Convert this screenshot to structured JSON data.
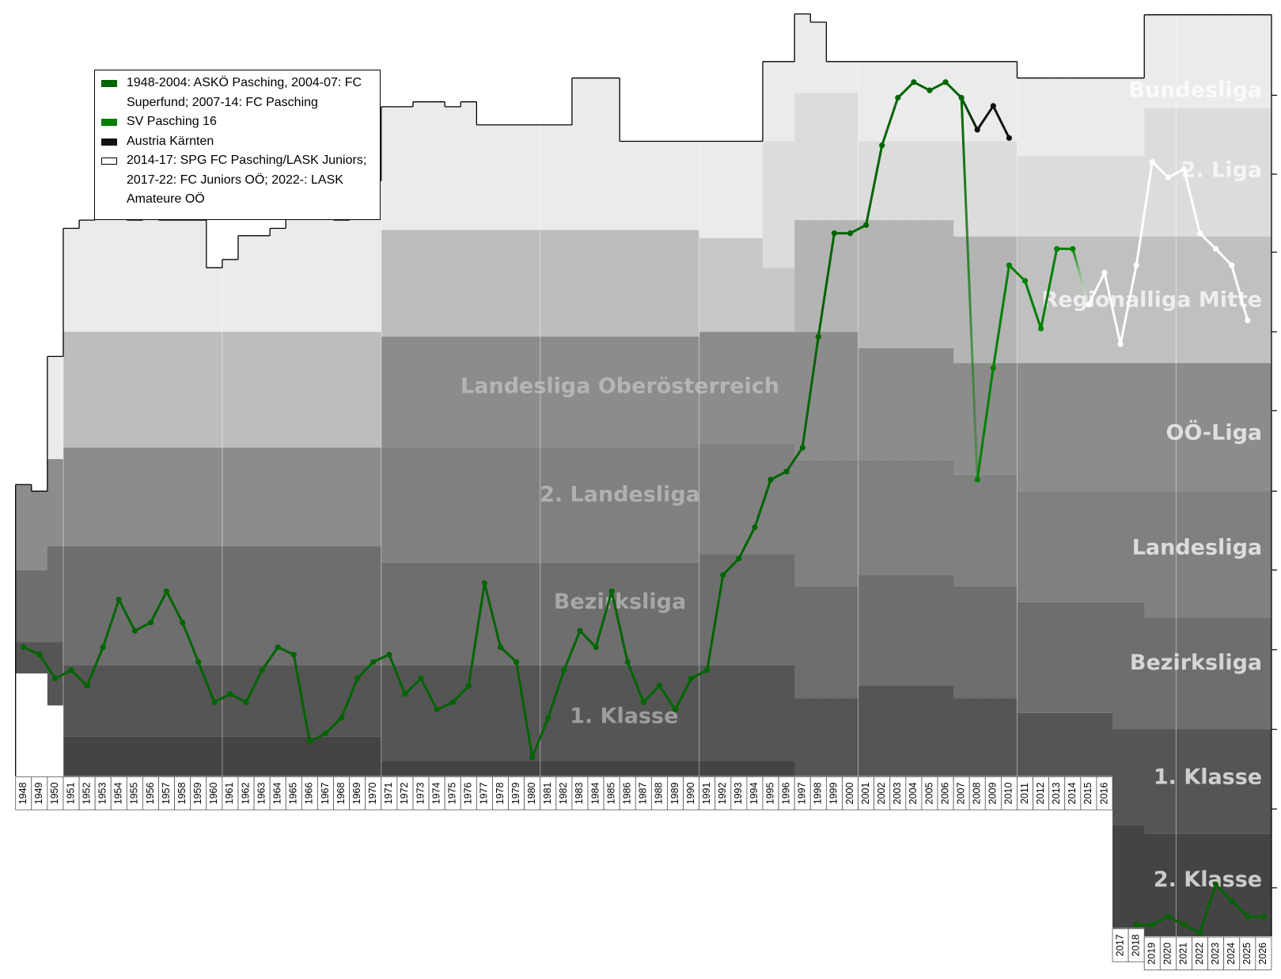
{
  "chart_data": {
    "type": "line",
    "x": [
      1948,
      1949,
      1950,
      1951,
      1952,
      1953,
      1954,
      1955,
      1956,
      1957,
      1958,
      1959,
      1960,
      1961,
      1962,
      1963,
      1964,
      1965,
      1966,
      1967,
      1968,
      1969,
      1970,
      1971,
      1972,
      1973,
      1974,
      1975,
      1976,
      1977,
      1978,
      1979,
      1980,
      1981,
      1982,
      1983,
      1984,
      1985,
      1986,
      1987,
      1988,
      1989,
      1990,
      1991,
      1992,
      1993,
      1994,
      1995,
      1996,
      1997,
      1998,
      1999,
      2000,
      2001,
      2002,
      2003,
      2004,
      2005,
      2006,
      2007,
      2008,
      2009,
      2010,
      2011,
      2012,
      2013,
      2014,
      2015,
      2016,
      2017,
      2018,
      2019,
      2020,
      2021,
      2022,
      2023,
      2024,
      2025,
      2026
    ],
    "xlim": [
      1946.52,
      2027.1
    ],
    "ylim": [
      0,
      1192
    ],
    "yticks": [
      116,
      212,
      307,
      404,
      500,
      598,
      694,
      791,
      888,
      985,
      1081
    ],
    "series": [
      {
        "name": "1948-2004: ASKÖ Pasching, 2004-07: FC Superfund; 2007-14: FC Pasching",
        "color": "#006400",
        "x": [
          1948,
          1949,
          1950,
          1951,
          1952,
          1953,
          1954,
          1955,
          1956,
          1957,
          1958,
          1959,
          1960,
          1961,
          1962,
          1963,
          1964,
          1965,
          1966,
          1967,
          1968,
          1969,
          1970,
          1971,
          1972,
          1973,
          1974,
          1975,
          1976,
          1977,
          1978,
          1979,
          1980,
          1981,
          1982,
          1983,
          1984,
          1985,
          1986,
          1987,
          1988,
          1989,
          1990,
          1991,
          1992,
          1993,
          1994,
          1995,
          1996,
          1997,
          1998,
          1999,
          2000,
          2001,
          2002,
          2003,
          2004,
          2005,
          2006,
          2007,
          2017,
          2018,
          2019,
          2020,
          2021,
          2022,
          2023,
          2024,
          2025,
          2026
        ],
        "values": [
          788,
          797,
          826,
          816,
          835,
          788,
          730,
          768,
          758,
          720,
          758,
          806,
          855,
          845,
          855,
          816,
          788,
          797,
          903,
          893,
          874,
          826,
          806,
          797,
          845,
          826,
          864,
          855,
          835,
          710,
          788,
          806,
          922,
          874,
          816,
          768,
          788,
          720,
          806,
          855,
          835,
          864,
          826,
          816,
          700,
          680,
          642,
          584,
          574,
          545,
          410,
          284,
          284,
          274,
          177,
          119,
          100,
          110,
          100,
          119,
          null,
          1126,
          1126,
          1116,
          1126,
          1136,
          1077,
          1097,
          1116,
          1116
        ]
      },
      {
        "name": "SV Pasching 16",
        "color": "#008000",
        "x": [
          2008,
          2009,
          2010,
          2011,
          2012,
          2013,
          2014
        ],
        "values": [
          584,
          448,
          323,
          342,
          400,
          303,
          303
        ]
      },
      {
        "name": "Austria Kärnten",
        "color": "#111111",
        "x": [
          2008,
          2009,
          2010
        ],
        "values": [
          158,
          129,
          168
        ]
      },
      {
        "name": "2014-17: SPG FC Pasching/LASK Juniors; 2017-22: FC Juniors OÖ; 2022-: LASK Amateure OÖ",
        "color": "#ffffff",
        "x": [
          2015,
          2016,
          2017,
          2018,
          2019,
          2020,
          2021,
          2022,
          2023,
          2024,
          2025
        ],
        "values": [
          371,
          332,
          419,
          323,
          197,
          216,
          206,
          284,
          303,
          323,
          390
        ]
      }
    ],
    "columns": [
      {
        "years": [
          1948,
          1949
        ],
        "tops": [
          590,
          598
        ],
        "segments": [
          [
            "#8c8c8c",
            694
          ],
          [
            "#6e6e6e",
            782
          ],
          [
            "#555555",
            820
          ],
          [
            "#ffffff",
            945
          ]
        ]
      },
      {
        "years": [
          1950,
          1950
        ],
        "tops": [
          434
        ],
        "segments": [
          [
            "#ebebeb",
            559
          ],
          [
            "#8c8c8c",
            665
          ],
          [
            "#6e6e6e",
            782
          ],
          [
            "#555555",
            859
          ],
          [
            "#ffffff",
            945
          ]
        ]
      },
      {
        "years": [
          1951,
          1970
        ],
        "tops": [
          278,
          268,
          250,
          258,
          268,
          258,
          268,
          268,
          268,
          326,
          316,
          287,
          287,
          278,
          258,
          258,
          258,
          268,
          258,
          220
        ],
        "segments": [
          [
            "#ebebeb",
            404
          ],
          [
            "#bdbdbd",
            545
          ],
          [
            "#8c8c8c",
            665
          ],
          [
            "#6e6e6e",
            810
          ],
          [
            "#555555",
            897
          ],
          [
            "#444444",
            945
          ]
        ]
      },
      {
        "years": [
          1971,
          1990
        ],
        "tops": [
          130,
          130,
          124,
          124,
          130,
          124,
          152,
          152,
          152,
          152,
          152,
          152,
          95,
          95,
          95,
          172,
          172,
          172,
          172,
          172
        ],
        "segments": [
          [
            "#ebebeb",
            280
          ],
          [
            "#bdbdbd",
            410
          ],
          [
            "#8c8c8c",
            545
          ],
          [
            "#808080",
            685
          ],
          [
            "#6e6e6e",
            810
          ],
          [
            "#555555",
            927
          ],
          [
            "#444444",
            945
          ]
        ]
      },
      {
        "years": [
          1991,
          1994
        ],
        "tops": [
          172,
          172,
          172,
          172
        ],
        "segments": [
          [
            "#ebebeb",
            290
          ],
          [
            "#c8c8c8",
            404
          ],
          [
            "#8c8c8c",
            540
          ],
          [
            "#808080",
            675
          ],
          [
            "#6e6e6e",
            810
          ],
          [
            "#555555",
            927
          ],
          [
            "#444444",
            945
          ]
        ]
      },
      {
        "years": [
          1995,
          1996
        ],
        "tops": [
          75,
          75
        ],
        "segments": [
          [
            "#ebebeb",
            172
          ],
          [
            "#dcdcdc",
            326
          ],
          [
            "#c8c8c8",
            404
          ],
          [
            "#8c8c8c",
            540
          ],
          [
            "#808080",
            675
          ],
          [
            "#6e6e6e",
            810
          ],
          [
            "#555555",
            927
          ],
          [
            "#444444",
            945
          ]
        ]
      },
      {
        "years": [
          1997,
          2000
        ],
        "tops": [
          17,
          27,
          75,
          75
        ],
        "segments": [
          [
            "#ebebeb",
            113
          ],
          [
            "#dcdcdc",
            268
          ],
          [
            "#b4b4b4",
            404
          ],
          [
            "#8c8c8c",
            560
          ],
          [
            "#808080",
            714
          ],
          [
            "#6e6e6e",
            850
          ],
          [
            "#555555",
            945
          ]
        ]
      },
      {
        "years": [
          2001,
          2006
        ],
        "tops": [
          75,
          75,
          75,
          75,
          75,
          75
        ],
        "segments": [
          [
            "#ebebeb",
            172
          ],
          [
            "#dcdcdc",
            268
          ],
          [
            "#b4b4b4",
            424
          ],
          [
            "#8c8c8c",
            560
          ],
          [
            "#808080",
            700
          ],
          [
            "#6e6e6e",
            835
          ],
          [
            "#555555",
            945
          ]
        ]
      },
      {
        "years": [
          2007,
          2010
        ],
        "tops": [
          75,
          75,
          75,
          75
        ],
        "segments": [
          [
            "#ebebeb",
            172
          ],
          [
            "#dcdcdc",
            288
          ],
          [
            "#b4b4b4",
            442
          ],
          [
            "#8c8c8c",
            578
          ],
          [
            "#808080",
            714
          ],
          [
            "#6e6e6e",
            850
          ],
          [
            "#555555",
            945
          ]
        ]
      },
      {
        "years": [
          2011,
          2016
        ],
        "tops": [
          95,
          95,
          95,
          95,
          95,
          95
        ],
        "segments": [
          [
            "#ebebeb",
            190
          ],
          [
            "#dcdcdc",
            288
          ],
          [
            "#c0c0c0",
            442
          ],
          [
            "#8c8c8c",
            598
          ],
          [
            "#808080",
            733
          ],
          [
            "#6e6e6e",
            868
          ],
          [
            "#555555",
            945
          ]
        ]
      },
      {
        "years": [
          2017,
          2018
        ],
        "tops": [
          95,
          95
        ],
        "segments": [
          [
            "#ebebeb",
            190
          ],
          [
            "#dcdcdc",
            288
          ],
          [
            "#c0c0c0",
            442
          ],
          [
            "#8c8c8c",
            598
          ],
          [
            "#808080",
            733
          ],
          [
            "#6e6e6e",
            888
          ],
          [
            "#555555",
            1005
          ],
          [
            "#444444",
            1130
          ]
        ]
      },
      {
        "years": [
          2019,
          2026
        ],
        "tops": [
          18,
          18,
          18,
          18,
          18,
          18,
          18,
          18
        ],
        "segments": [
          [
            "#ebebeb",
            132
          ],
          [
            "#dcdcdc",
            288
          ],
          [
            "#c0c0c0",
            442
          ],
          [
            "#8c8c8c",
            598
          ],
          [
            "#808080",
            752
          ],
          [
            "#6e6e6e",
            888
          ],
          [
            "#555555",
            1015
          ],
          [
            "#444444",
            1140
          ]
        ]
      }
    ],
    "tier_labels": [
      "Bundesliga",
      "2. Liga",
      "Regionalliga Mitte",
      "OÖ-Liga",
      "Landesliga",
      "Bezirksliga",
      "1. Klasse",
      "2. Klasse",
      "Landesliga Oberösterreich",
      "2. Landesliga",
      "Bezirksliga",
      "1. Klasse"
    ]
  }
}
